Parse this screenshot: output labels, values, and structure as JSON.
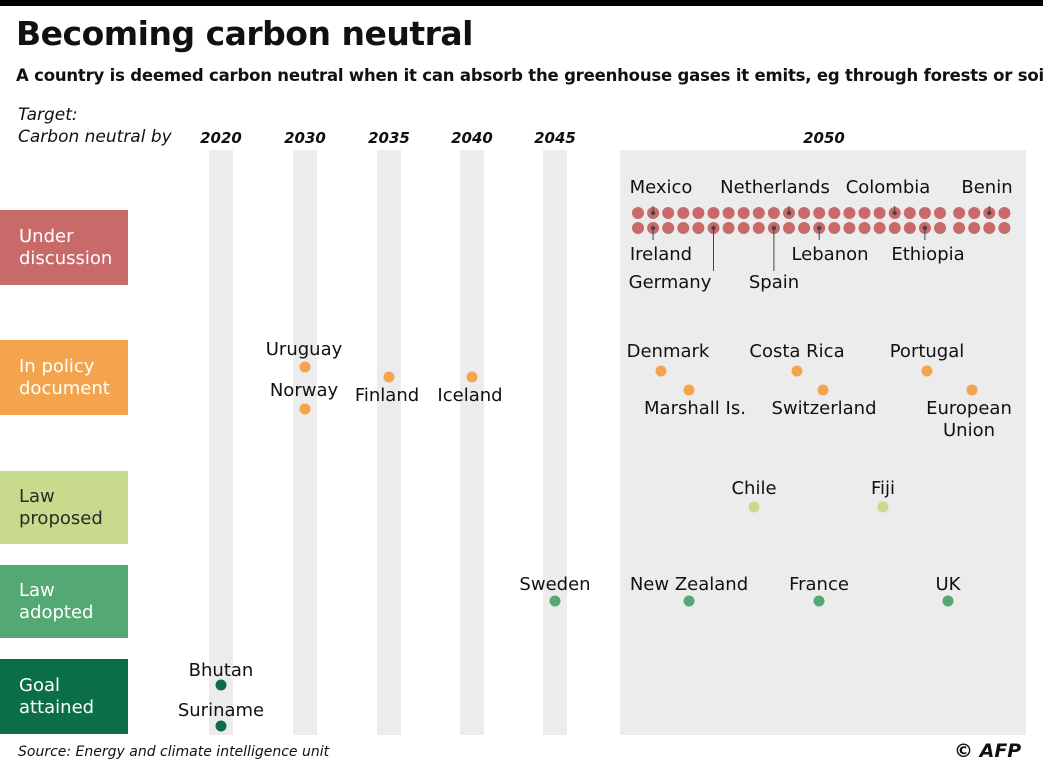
{
  "header": {
    "title": "Becoming carbon neutral",
    "subtitle": "A country is deemed carbon neutral when it can absorb the greenhouse gases it emits, eg through forests or soil",
    "target_line1": "Target:",
    "target_line2": "Carbon neutral by"
  },
  "footer": {
    "source": "Source: Energy and climate intelligence unit",
    "credit": "© AFP"
  },
  "colors": {
    "under_discussion": "#c96a6a",
    "in_policy_document": "#f5a44e",
    "law_proposed": "#c8db8c",
    "law_adopted": "#54a874",
    "goal_attained": "#0a6e46",
    "column": "#ececec",
    "text": "#111111"
  },
  "chart_data": {
    "type": "scatter",
    "title": "Becoming carbon neutral",
    "x_axis": {
      "categories": [
        "2020",
        "2030",
        "2035",
        "2040",
        "2045",
        "2050"
      ]
    },
    "y_axis": {
      "categories": [
        "Under discussion",
        "In policy document",
        "Law proposed",
        "Law adopted",
        "Goal attained"
      ]
    },
    "category_labels": [
      {
        "key": "under_discussion",
        "label": "Under\ndiscussion"
      },
      {
        "key": "in_policy_document",
        "label": "In policy\ndocument"
      },
      {
        "key": "law_proposed",
        "label": "Law\nproposed"
      },
      {
        "key": "law_adopted",
        "label": "Law\nadopted"
      },
      {
        "key": "goal_attained",
        "label": "Goal\nattained"
      }
    ],
    "points": [
      {
        "country": "Uruguay",
        "year": "2030",
        "status": "In policy document"
      },
      {
        "country": "Norway",
        "year": "2030",
        "status": "In policy document"
      },
      {
        "country": "Finland",
        "year": "2035",
        "status": "In policy document"
      },
      {
        "country": "Iceland",
        "year": "2040",
        "status": "In policy document"
      },
      {
        "country": "Denmark",
        "year": "2050",
        "status": "In policy document"
      },
      {
        "country": "Marshall Is.",
        "year": "2050",
        "status": "In policy document"
      },
      {
        "country": "Costa Rica",
        "year": "2050",
        "status": "In policy document"
      },
      {
        "country": "Switzerland",
        "year": "2050",
        "status": "In policy document"
      },
      {
        "country": "Portugal",
        "year": "2050",
        "status": "In policy document"
      },
      {
        "country": "European Union",
        "year": "2050",
        "status": "In policy document"
      },
      {
        "country": "Chile",
        "year": "2050",
        "status": "Law proposed"
      },
      {
        "country": "Fiji",
        "year": "2050",
        "status": "Law proposed"
      },
      {
        "country": "Sweden",
        "year": "2045",
        "status": "Law adopted"
      },
      {
        "country": "New Zealand",
        "year": "2050",
        "status": "Law adopted"
      },
      {
        "country": "France",
        "year": "2050",
        "status": "Law adopted"
      },
      {
        "country": "UK",
        "year": "2050",
        "status": "Law adopted"
      },
      {
        "country": "Bhutan",
        "year": "2020",
        "status": "Goal attained"
      },
      {
        "country": "Suriname",
        "year": "2020",
        "status": "Goal attained"
      }
    ],
    "under_discussion": {
      "year": "2050",
      "dot_rows": 2,
      "dots_per_row": 25,
      "labeled": [
        "Mexico",
        "Netherlands",
        "Colombia",
        "Benin",
        "Ireland",
        "Germany",
        "Spain",
        "Lebanon",
        "Ethiopia"
      ]
    }
  }
}
